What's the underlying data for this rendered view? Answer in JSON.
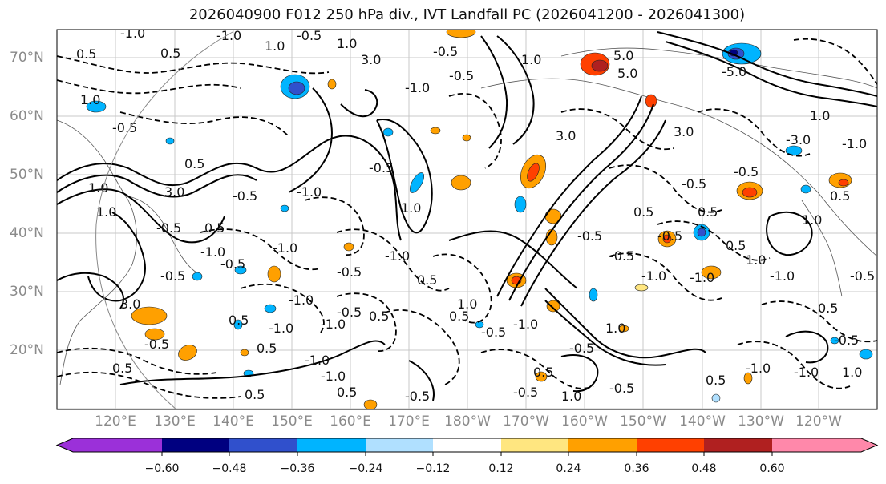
{
  "title": "2026040900 F012 250 hPa div., IVT Landfall PC (2026041200 - 2026041300)",
  "map": {
    "lat_labels": [
      "70°N",
      "60°N",
      "50°N",
      "40°N",
      "30°N",
      "20°N"
    ],
    "lon_labels": [
      "120°E",
      "130°E",
      "140°E",
      "150°E",
      "160°E",
      "170°E",
      "180°W",
      "170°W",
      "160°W",
      "150°W",
      "140°W",
      "130°W",
      "120°W"
    ],
    "contour_labels": [
      "-1.0",
      "-1.0",
      "-0.5",
      "0.5",
      "0.5",
      "1.0",
      "1.0",
      "-0.5",
      "0.5",
      "1.0",
      "1.0",
      "-0.5",
      "0.5",
      "-0.5",
      "-1.0",
      "-1.0",
      "-0.5",
      "-0.5",
      "0.5",
      "-1.0",
      "-1.0",
      "0.5",
      "0.5",
      "-0.5",
      "3.0",
      "1.0",
      "-0.5",
      "-1.0",
      "-0.5",
      "1.0",
      "3.0",
      "5.0",
      "5.0",
      "-5.0",
      "3.0",
      "-3.0",
      "-1.0",
      "1.0",
      "-0.5",
      "0.5",
      "-0.5",
      "0.5",
      "1.0",
      "-1.0",
      "-1.0",
      "-0.5",
      "1.0",
      "-0.5",
      "0.5",
      "-0.5",
      "0.5",
      "-1.0",
      "1.0",
      "0.5",
      "-1.0",
      "-0.5",
      "-0.5",
      "-1.0",
      "-0.5",
      "0.5",
      "3.0",
      "-1.0",
      "3.0",
      "0.5",
      "-1.0",
      "-1.0",
      "0.5",
      "1.0",
      "-0.5",
      "-0.5",
      "0.5",
      "-0.5",
      "-1.0",
      "0.5",
      "-0.5",
      "1.0",
      "-1.0",
      "1.0",
      "0.5",
      "-0.5",
      "-1.0",
      "0.5",
      "-0.5",
      "1.0",
      "-0.5"
    ]
  },
  "colorbar": {
    "ticks": [
      "−0.60",
      "−0.48",
      "−0.36",
      "−0.24",
      "−0.12",
      "0.12",
      "0.24",
      "0.36",
      "0.48",
      "0.60"
    ],
    "colors": [
      "#9b30d9",
      "#000080",
      "#3050cc",
      "#00b4ff",
      "#b0e0ff",
      "#ffffff",
      "#ffe680",
      "#ffa000",
      "#ff4000",
      "#b02020",
      "#ff88aa"
    ]
  }
}
